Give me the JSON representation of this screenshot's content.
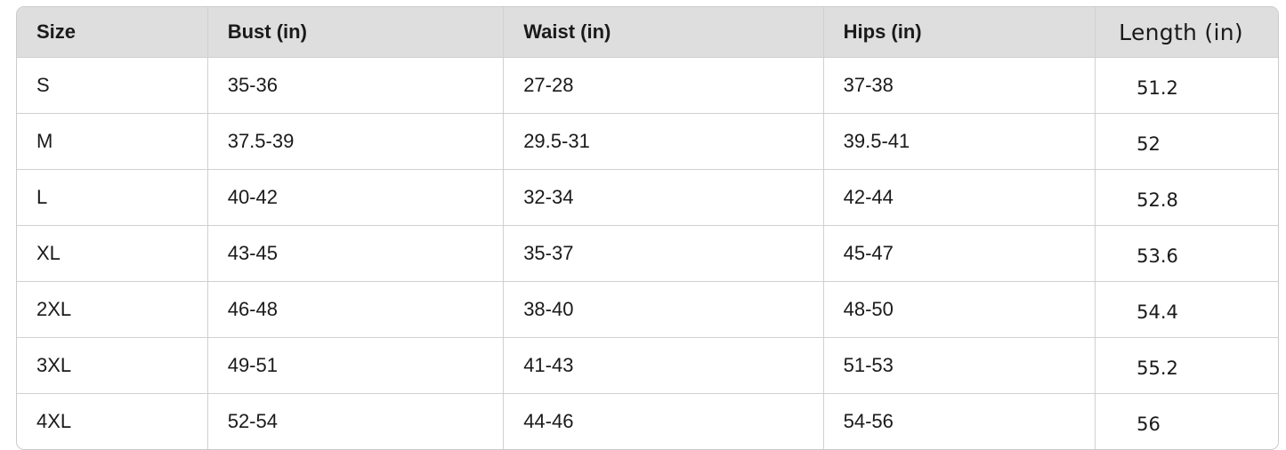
{
  "table": {
    "headers": [
      "Size",
      "Bust (in)",
      "Waist (in)",
      "Hips (in)",
      "Length (in)"
    ],
    "rows": [
      [
        "S",
        "35-36",
        "27-28",
        "37-38",
        "51.2"
      ],
      [
        "M",
        "37.5-39",
        "29.5-31",
        "39.5-41",
        "52"
      ],
      [
        "L",
        "40-42",
        "32-34",
        "42-44",
        "52.8"
      ],
      [
        "XL",
        "43-45",
        "35-37",
        "45-47",
        "53.6"
      ],
      [
        "2XL",
        "46-48",
        "38-40",
        "48-50",
        "54.4"
      ],
      [
        "3XL",
        "49-51",
        "41-43",
        "51-53",
        "55.2"
      ],
      [
        "4XL",
        "52-54",
        "44-46",
        "54-56",
        "56"
      ]
    ]
  }
}
